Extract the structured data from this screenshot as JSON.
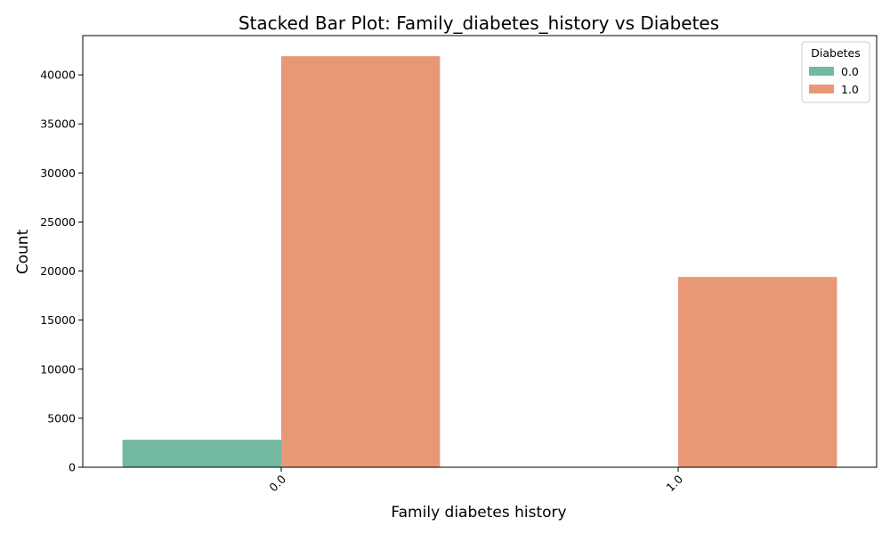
{
  "chart_data": {
    "type": "bar",
    "title": "Stacked Bar Plot: Family_diabetes_history vs Diabetes",
    "xlabel": "Family diabetes history",
    "ylabel": "Count",
    "categories": [
      "0.0",
      "1.0"
    ],
    "series": [
      {
        "name": "0.0",
        "values": [
          2800,
          0
        ],
        "color": "#73b9a2"
      },
      {
        "name": "1.0",
        "values": [
          41900,
          19400
        ],
        "color": "#e99875"
      }
    ],
    "yticks": [
      0,
      5000,
      10000,
      15000,
      20000,
      25000,
      30000,
      35000,
      40000
    ],
    "ylim": [
      0,
      44000
    ],
    "legend": {
      "title": "Diabetes",
      "placement": "top-right"
    },
    "grid": false
  }
}
